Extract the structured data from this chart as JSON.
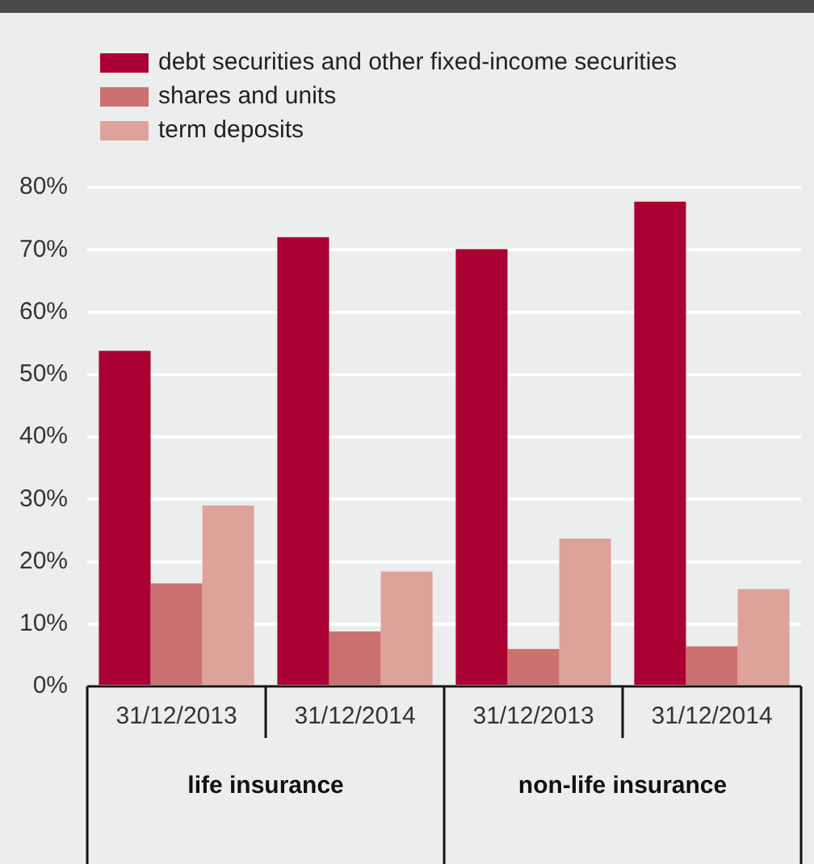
{
  "chart_data": {
    "type": "bar",
    "categories": [
      "31/12/2013",
      "31/12/2014",
      "31/12/2013",
      "31/12/2014"
    ],
    "series": [
      {
        "name": "debt securities and other fixed-income securities",
        "color": "#ab0033",
        "values": [
          53.8,
          72.0,
          70.1,
          77.7
        ]
      },
      {
        "name": "shares and units",
        "color": "#cb716f",
        "values": [
          16.5,
          8.8,
          6.0,
          6.4
        ]
      },
      {
        "name": "term deposits",
        "color": "#dea29b",
        "values": [
          29.0,
          18.4,
          23.7,
          15.6
        ]
      }
    ],
    "annotations": [
      "life insurance",
      "non-life insurance"
    ],
    "ylim": [
      0,
      80
    ],
    "yticks": [
      {
        "value": 0,
        "label": "0%"
      },
      {
        "value": 10,
        "label": "10%"
      },
      {
        "value": 20,
        "label": "20%"
      },
      {
        "value": 30,
        "label": "30%"
      },
      {
        "value": 40,
        "label": "40%"
      },
      {
        "value": 50,
        "label": "50%"
      },
      {
        "value": 60,
        "label": "60%"
      },
      {
        "value": 70,
        "label": "70%"
      },
      {
        "value": 80,
        "label": "80%"
      }
    ],
    "grid": "y",
    "legend": "top left"
  }
}
